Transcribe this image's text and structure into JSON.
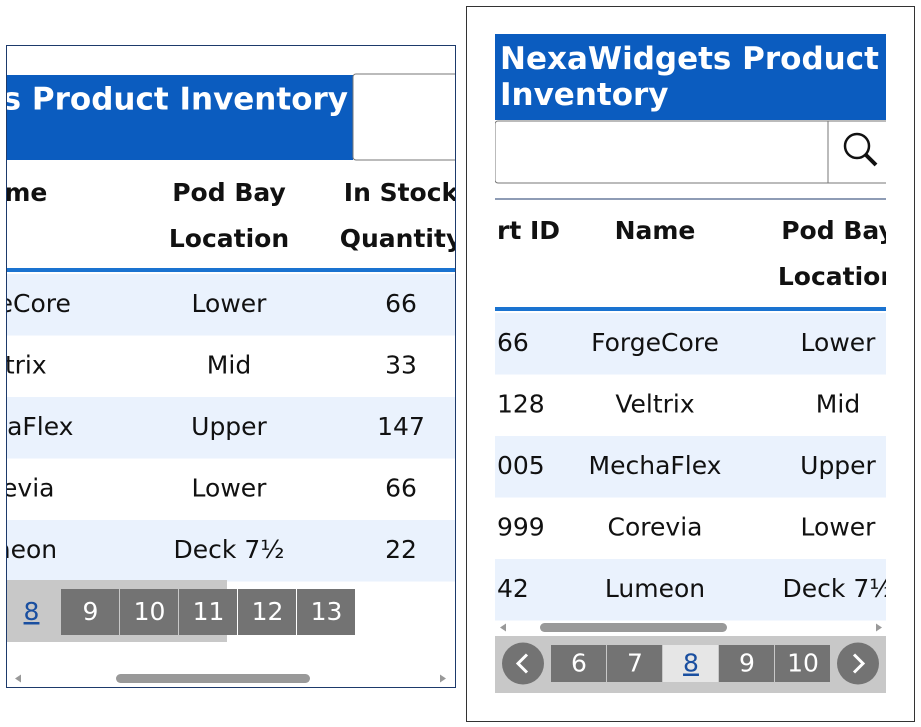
{
  "title": "NexaWidgets Product Inventory",
  "table": {
    "columns": [
      "rt ID",
      "Name",
      "Pod Bay Location",
      "In Stock Quantity"
    ],
    "rows": [
      [
        "66",
        "ForgeCore",
        "Lower",
        "66"
      ],
      [
        "128",
        "Veltrix",
        "Mid",
        "33"
      ],
      [
        "005",
        "MechaFlex",
        "Upper",
        "147"
      ],
      [
        "999",
        "Corevia",
        "Lower",
        "66"
      ],
      [
        "42",
        "Lumeon",
        "Deck 7½",
        "22"
      ]
    ]
  },
  "pagination_left": {
    "pages": [
      8,
      9,
      10,
      11,
      12,
      13
    ],
    "current": 8
  },
  "pagination_right": {
    "pages": [
      6,
      7,
      8,
      9,
      10
    ],
    "current": 8
  }
}
